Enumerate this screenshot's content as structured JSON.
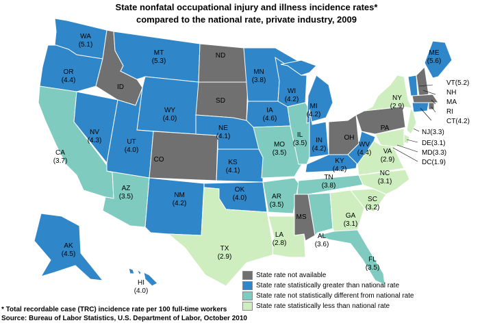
{
  "title_line1": "State nonfatal occupational injury and illness incidence rates*",
  "title_line2": "compared to the national rate, private industry, 2009",
  "legend": [
    {
      "key": "na",
      "label": "State rate not available",
      "color": "#707070"
    },
    {
      "key": "greater",
      "label": "State rate statistically greater than national rate",
      "color": "#2f86c8"
    },
    {
      "key": "notdiff",
      "label": "State rate not statistically different from national rate",
      "color": "#7fcbbf"
    },
    {
      "key": "less",
      "label": "State rate statistically less than national rate",
      "color": "#cfeec0"
    }
  ],
  "footnote": "* Total recordable case (TRC) incidence rate per 100 full-time workers",
  "source": "Source: Bureau of Labor Statistics, U.S. Department of Labor, October 2010",
  "states": [
    {
      "abbr": "WA",
      "rate": "(5.1)",
      "category": "greater"
    },
    {
      "abbr": "OR",
      "rate": "(4.4)",
      "category": "greater"
    },
    {
      "abbr": "CA",
      "rate": "(3.7)",
      "category": "notdiff"
    },
    {
      "abbr": "NV",
      "rate": "(4.3)",
      "category": "greater"
    },
    {
      "abbr": "ID",
      "rate": "",
      "category": "na"
    },
    {
      "abbr": "MT",
      "rate": "(5.3)",
      "category": "greater"
    },
    {
      "abbr": "WY",
      "rate": "(4.0)",
      "category": "greater"
    },
    {
      "abbr": "UT",
      "rate": "(4.0)",
      "category": "greater"
    },
    {
      "abbr": "AZ",
      "rate": "(3.5)",
      "category": "notdiff"
    },
    {
      "abbr": "CO",
      "rate": "",
      "category": "na"
    },
    {
      "abbr": "NM",
      "rate": "(4.2)",
      "category": "greater"
    },
    {
      "abbr": "ND",
      "rate": "",
      "category": "na"
    },
    {
      "abbr": "SD",
      "rate": "",
      "category": "na"
    },
    {
      "abbr": "NE",
      "rate": "(4.1)",
      "category": "greater"
    },
    {
      "abbr": "KS",
      "rate": "(4.1)",
      "category": "greater"
    },
    {
      "abbr": "OK",
      "rate": "(4.0)",
      "category": "greater"
    },
    {
      "abbr": "TX",
      "rate": "(2.9)",
      "category": "less"
    },
    {
      "abbr": "MN",
      "rate": "(3.8)",
      "category": "greater"
    },
    {
      "abbr": "IA",
      "rate": "(4.6)",
      "category": "greater"
    },
    {
      "abbr": "MO",
      "rate": "(3.5)",
      "category": "notdiff"
    },
    {
      "abbr": "AR",
      "rate": "(3.5)",
      "category": "notdiff"
    },
    {
      "abbr": "LA",
      "rate": "(2.8)",
      "category": "less"
    },
    {
      "abbr": "WI",
      "rate": "(4.2)",
      "category": "greater"
    },
    {
      "abbr": "IL",
      "rate": "(3.5)",
      "category": "notdiff"
    },
    {
      "abbr": "MI",
      "rate": "(4.2)",
      "category": "greater"
    },
    {
      "abbr": "IN",
      "rate": "(4.2)",
      "category": "greater"
    },
    {
      "abbr": "OH",
      "rate": "",
      "category": "na"
    },
    {
      "abbr": "KY",
      "rate": "(4.2)",
      "category": "greater"
    },
    {
      "abbr": "TN",
      "rate": "(3.8)",
      "category": "notdiff"
    },
    {
      "abbr": "MS",
      "rate": "",
      "category": "na"
    },
    {
      "abbr": "AL",
      "rate": "(3.6)",
      "category": "notdiff"
    },
    {
      "abbr": "GA",
      "rate": "(3.1)",
      "category": "less"
    },
    {
      "abbr": "FL",
      "rate": "(3.5)",
      "category": "notdiff"
    },
    {
      "abbr": "SC",
      "rate": "(3.2)",
      "category": "less"
    },
    {
      "abbr": "NC",
      "rate": "(3.1)",
      "category": "less"
    },
    {
      "abbr": "VA",
      "rate": "(2.9)",
      "category": "less"
    },
    {
      "abbr": "WV",
      "rate": "(4.4)",
      "category": "greater"
    },
    {
      "abbr": "PA",
      "rate": "",
      "category": "na"
    },
    {
      "abbr": "NY",
      "rate": "(2.9)",
      "category": "less"
    },
    {
      "abbr": "ME",
      "rate": "(5.6)",
      "category": "greater"
    },
    {
      "abbr": "VT",
      "rate": "(5.2)",
      "category": "greater"
    },
    {
      "abbr": "NH",
      "rate": "",
      "category": "na"
    },
    {
      "abbr": "MA",
      "rate": "",
      "category": "na"
    },
    {
      "abbr": "RI",
      "rate": "",
      "category": "na"
    },
    {
      "abbr": "CT",
      "rate": "(4.2)",
      "category": "greater"
    },
    {
      "abbr": "NJ",
      "rate": "(3.3)",
      "category": "less"
    },
    {
      "abbr": "DE",
      "rate": "(3.1)",
      "category": "less"
    },
    {
      "abbr": "MD",
      "rate": "(3.3)",
      "category": "less"
    },
    {
      "abbr": "DC",
      "rate": "(1.9)",
      "category": "less"
    },
    {
      "abbr": "AK",
      "rate": "(4.5)",
      "category": "greater"
    },
    {
      "abbr": "HI",
      "rate": "(4.0)",
      "category": "greater"
    }
  ]
}
